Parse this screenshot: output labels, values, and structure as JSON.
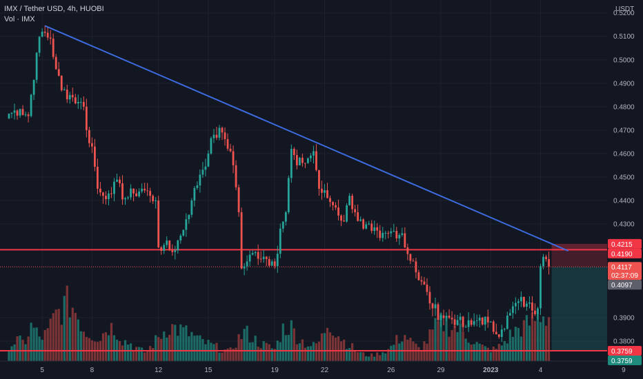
{
  "header": {
    "symbol_line": "IMX / Tether USD, 4h, HUOBI",
    "volume_line": "Vol · IMX"
  },
  "colors": {
    "background": "#131722",
    "grid": "#1e222d",
    "up": "#26a69a",
    "down": "#ef5350",
    "up_volume": "#1f7a72",
    "down_volume": "#8e3a3a",
    "trendline": "#3d6be0",
    "horizontal_line": "#f23645",
    "text": "#b2b5be"
  },
  "chart_data": {
    "type": "candlestick",
    "x_axis": {
      "tick_labels": [
        "5",
        "8",
        "12",
        "15",
        "19",
        "22",
        "26",
        "29",
        "2023",
        "4",
        "9"
      ],
      "tick_bar_index": [
        12,
        30,
        54,
        72,
        96,
        114,
        138,
        156,
        174,
        192,
        222
      ]
    },
    "y_axis": {
      "unit": "USDT",
      "range": [
        0.3715,
        0.5255
      ],
      "tick_labels": [
        "0.5200",
        "0.5100",
        "0.5000",
        "0.4900",
        "0.4800",
        "0.4700",
        "0.4600",
        "0.4500",
        "0.4400",
        "0.4300",
        "0.3900",
        "0.3800"
      ],
      "tick_values": [
        0.52,
        0.51,
        0.5,
        0.49,
        0.48,
        0.47,
        0.46,
        0.45,
        0.44,
        0.43,
        0.39,
        0.38
      ]
    },
    "close_path": [
      [
        0,
        0.477
      ],
      [
        4,
        0.479
      ],
      [
        7,
        0.476
      ],
      [
        10,
        0.503
      ],
      [
        12,
        0.512
      ],
      [
        15,
        0.509
      ],
      [
        17,
        0.496
      ],
      [
        19,
        0.487
      ],
      [
        22,
        0.485
      ],
      [
        25,
        0.482
      ],
      [
        27,
        0.48
      ],
      [
        28,
        0.47
      ],
      [
        30,
        0.463
      ],
      [
        32,
        0.445
      ],
      [
        34,
        0.442
      ],
      [
        36,
        0.443
      ],
      [
        38,
        0.448
      ],
      [
        42,
        0.441
      ],
      [
        45,
        0.443
      ],
      [
        48,
        0.445
      ],
      [
        51,
        0.442
      ],
      [
        53,
        0.44
      ],
      [
        54,
        0.42
      ],
      [
        56,
        0.421
      ],
      [
        59,
        0.418
      ],
      [
        62,
        0.425
      ],
      [
        64,
        0.432
      ],
      [
        66,
        0.44
      ],
      [
        69,
        0.451
      ],
      [
        72,
        0.46
      ],
      [
        74,
        0.468
      ],
      [
        77,
        0.469
      ],
      [
        80,
        0.461
      ],
      [
        81,
        0.455
      ],
      [
        83,
        0.435
      ],
      [
        84,
        0.411
      ],
      [
        86,
        0.414
      ],
      [
        89,
        0.418
      ],
      [
        92,
        0.416
      ],
      [
        95,
        0.414
      ],
      [
        96,
        0.412
      ],
      [
        98,
        0.428
      ],
      [
        100,
        0.435
      ],
      [
        102,
        0.462
      ],
      [
        104,
        0.455
      ],
      [
        106,
        0.456
      ],
      [
        108,
        0.458
      ],
      [
        110,
        0.461
      ],
      [
        112,
        0.445
      ],
      [
        115,
        0.441
      ],
      [
        118,
        0.437
      ],
      [
        121,
        0.431
      ],
      [
        123,
        0.442
      ],
      [
        125,
        0.435
      ],
      [
        128,
        0.428
      ],
      [
        131,
        0.427
      ],
      [
        134,
        0.424
      ],
      [
        137,
        0.426
      ],
      [
        139,
        0.427
      ],
      [
        142,
        0.426
      ],
      [
        143,
        0.42
      ],
      [
        146,
        0.414
      ],
      [
        148,
        0.406
      ],
      [
        151,
        0.401
      ],
      [
        153,
        0.394
      ],
      [
        156,
        0.391
      ],
      [
        159,
        0.39
      ],
      [
        162,
        0.389
      ],
      [
        164,
        0.386
      ],
      [
        167,
        0.387
      ],
      [
        170,
        0.39
      ],
      [
        173,
        0.388
      ],
      [
        175,
        0.384
      ],
      [
        178,
        0.385
      ],
      [
        181,
        0.392
      ],
      [
        184,
        0.397
      ],
      [
        187,
        0.396
      ],
      [
        189,
        0.393
      ],
      [
        191,
        0.394
      ],
      [
        192,
        0.412
      ],
      [
        193,
        0.416
      ],
      [
        194,
        0.415
      ],
      [
        195,
        0.4117
      ]
    ],
    "volume_levels": [
      0.25,
      0.35,
      0.3,
      0.6,
      0.4,
      0.45,
      0.75,
      0.9,
      1.0,
      0.8,
      0.5,
      0.45,
      0.4,
      0.6,
      0.55,
      0.35,
      0.3,
      0.2,
      0.15,
      0.3,
      0.45,
      0.6,
      0.55,
      0.5,
      0.45,
      0.35,
      0.3,
      0.25,
      0.2,
      0.15,
      0.35,
      0.5,
      0.4,
      0.3,
      0.25,
      0.2,
      0.55,
      0.6,
      0.4,
      0.3,
      0.25,
      0.35,
      0.7,
      0.5,
      0.35,
      0.25,
      0.15,
      0.1,
      0.1,
      0.15,
      0.2,
      0.35,
      0.45,
      0.3,
      0.2,
      0.35,
      0.55,
      0.65,
      0.6,
      0.55,
      0.45,
      0.35,
      0.25,
      0.2,
      0.2,
      0.3,
      0.45,
      0.55,
      0.6,
      0.7,
      0.8,
      0.75
    ],
    "drawings": {
      "trendline": {
        "from": [
          13,
          0.5145
        ],
        "to": [
          202,
          0.4185
        ]
      },
      "resistance_line": 0.419,
      "support_line": 0.3759,
      "short_position": {
        "start_index": 196,
        "stop_top": 0.4215,
        "entry": 0.419,
        "target": 0.3759
      }
    },
    "price_tags": [
      {
        "label": "0.4215",
        "value": 0.4215,
        "color": "#f23645"
      },
      {
        "label": "0.4190",
        "value": 0.419,
        "color": "#f23645"
      },
      {
        "label": "0.4117",
        "value": 0.4117,
        "color": "#ef5350",
        "sublabel": "02:37:09"
      },
      {
        "label": "0.4097",
        "value": 0.4097,
        "color": "#5d606b"
      },
      {
        "label": "0.3759",
        "value": 0.3759,
        "color": "#f23645"
      },
      {
        "label": "0.3759",
        "value": 0.3759,
        "color": "#1f8b7c",
        "stack_below": true
      }
    ]
  }
}
